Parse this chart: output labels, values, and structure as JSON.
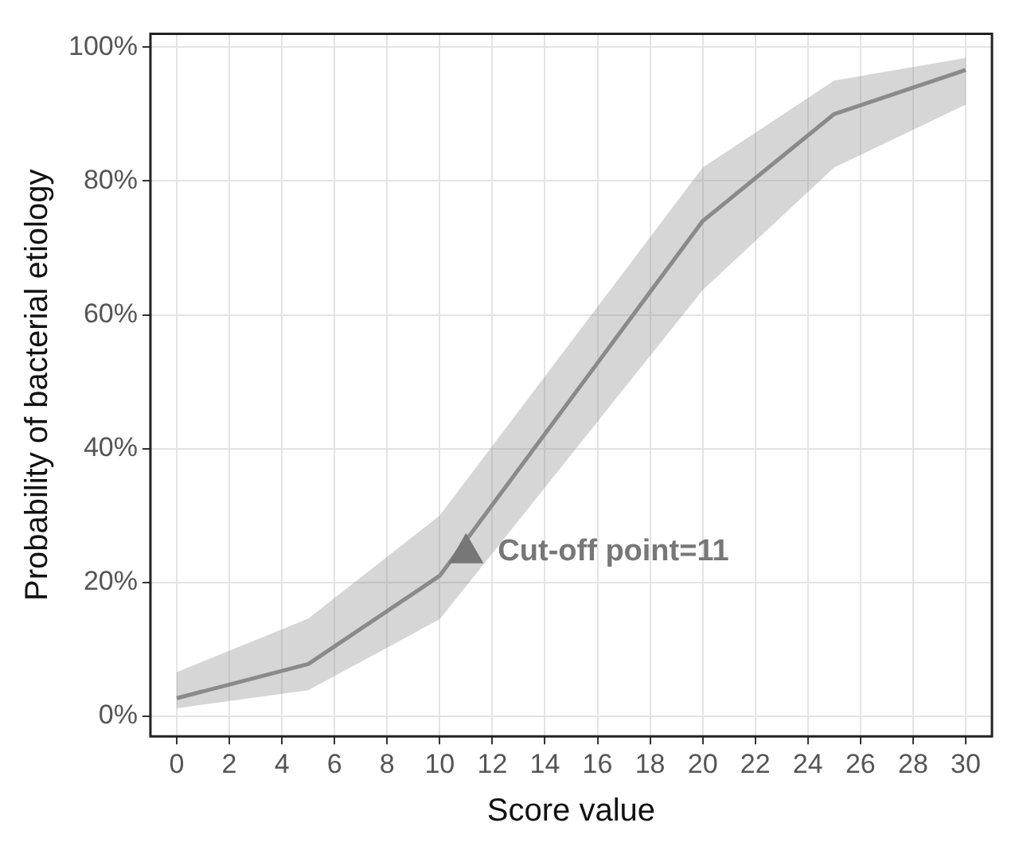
{
  "chart_data": {
    "type": "line",
    "xlabel": "Score value",
    "ylabel": "Probability of bacterial etiology",
    "x": [
      0,
      5,
      10,
      20,
      25,
      30
    ],
    "series": [
      {
        "color": "#8a8a8a",
        "values": [
          2.7,
          7.8,
          21,
          74,
          90,
          96.6
        ],
        "lower": [
          1.2,
          3.9,
          14.5,
          63.7,
          82,
          91.4
        ],
        "upper": [
          6.6,
          14.6,
          30,
          82,
          95,
          98.4
        ]
      }
    ],
    "xlim": [
      -1,
      31
    ],
    "xticks": [
      0,
      2,
      4,
      6,
      8,
      10,
      12,
      14,
      16,
      18,
      20,
      22,
      24,
      26,
      28,
      30
    ],
    "ylim": [
      -3,
      102
    ],
    "yticks": [
      {
        "value": 0,
        "label": "0%"
      },
      {
        "value": 20,
        "label": "20%"
      },
      {
        "value": 40,
        "label": "40%"
      },
      {
        "value": 60,
        "label": "60%"
      },
      {
        "value": 80,
        "label": "80%"
      },
      {
        "value": 100,
        "label": "100%"
      }
    ],
    "grid": true,
    "legend": false,
    "marker": "none",
    "line_style": "solid",
    "annotations": [
      {
        "text": "Cut-off point=11",
        "x": 11,
        "y": 25
      }
    ]
  }
}
